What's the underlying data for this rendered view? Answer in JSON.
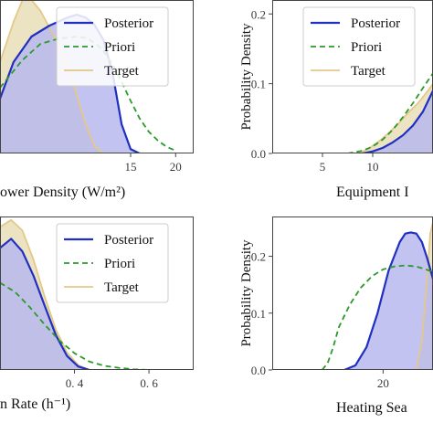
{
  "colors": {
    "posterior": "#1f2fbf",
    "posterior_fill": "#b9b9ee",
    "priori": "#2a9a2a",
    "target": "#e2c98a",
    "target_fill": "#e6d9ae",
    "axis": "#444444",
    "grid_bg": "#ffffff"
  },
  "chart_data": [
    {
      "type": "area",
      "panel": "top-left",
      "xlabel": "ower Density (W/m²)",
      "ylabel": "",
      "xlim": [
        0.5,
        22
      ],
      "ylim": [
        0,
        0.21
      ],
      "xticks": [
        15,
        20
      ],
      "xtick_labels": [
        "15",
        "20"
      ],
      "legend": {
        "placement": "top-right",
        "entries": [
          "Posterior",
          "Priori",
          "Target"
        ]
      },
      "series": [
        {
          "name": "Posterior",
          "x": [
            0.5,
            2,
            4,
            6,
            8,
            9,
            10,
            11,
            12,
            13,
            14,
            15,
            16
          ],
          "y": [
            0.075,
            0.125,
            0.16,
            0.175,
            0.186,
            0.19,
            0.186,
            0.176,
            0.155,
            0.11,
            0.04,
            0.006,
            0.0
          ]
        },
        {
          "name": "Priori",
          "x": [
            0.5,
            3,
            5,
            7,
            9,
            10,
            11,
            12,
            13,
            14,
            15,
            16,
            17,
            18,
            19,
            20
          ],
          "y": [
            0.09,
            0.128,
            0.15,
            0.157,
            0.16,
            0.158,
            0.152,
            0.14,
            0.122,
            0.098,
            0.072,
            0.048,
            0.03,
            0.018,
            0.009,
            0.004
          ]
        },
        {
          "name": "Target",
          "x": [
            0.5,
            2,
            3,
            4,
            5,
            6,
            7,
            8,
            9,
            10,
            11,
            12
          ],
          "y": [
            0.125,
            0.18,
            0.21,
            0.21,
            0.195,
            0.172,
            0.15,
            0.12,
            0.08,
            0.04,
            0.01,
            0.0
          ]
        }
      ]
    },
    {
      "type": "area",
      "panel": "top-right",
      "xlabel": "Equipment I",
      "ylabel": "Probability Density",
      "xlim": [
        0,
        16
      ],
      "ylim": [
        0,
        0.22
      ],
      "xticks": [
        5,
        10
      ],
      "xtick_labels": [
        "5",
        "10"
      ],
      "yticks": [
        0.0,
        0.1,
        0.2
      ],
      "ytick_labels": [
        "0.0",
        "0.1",
        "0.2"
      ],
      "legend": {
        "placement": "top-right",
        "entries": [
          "Posterior",
          "Priori",
          "Target"
        ]
      },
      "series": [
        {
          "name": "Posterior",
          "x": [
            9,
            10,
            11,
            12,
            13,
            14,
            15,
            16
          ],
          "y": [
            0.0,
            0.003,
            0.008,
            0.016,
            0.026,
            0.04,
            0.06,
            0.09
          ]
        },
        {
          "name": "Priori",
          "x": [
            7.5,
            9,
            10,
            11,
            12,
            13,
            14,
            15,
            16
          ],
          "y": [
            0.0,
            0.004,
            0.01,
            0.02,
            0.034,
            0.052,
            0.072,
            0.094,
            0.115
          ]
        },
        {
          "name": "Target",
          "x": [
            8.5,
            9.5,
            10.5,
            11.5,
            12.5,
            13.5,
            14.5,
            15.5,
            16
          ],
          "y": [
            0.0,
            0.006,
            0.016,
            0.028,
            0.042,
            0.058,
            0.072,
            0.09,
            0.1
          ]
        }
      ]
    },
    {
      "type": "area",
      "panel": "bottom-left",
      "xlabel": "n Rate (h⁻¹)",
      "ylabel": "",
      "xlim": [
        0.2,
        0.72
      ],
      "ylim": [
        0,
        0.22
      ],
      "xticks": [
        0.4,
        0.6
      ],
      "xtick_labels": [
        "0. 4",
        "0. 6"
      ],
      "legend": {
        "placement": "top-right",
        "entries": [
          "Posterior",
          "Priori",
          "Target"
        ]
      },
      "series": [
        {
          "name": "Posterior",
          "x": [
            0.2,
            0.23,
            0.26,
            0.29,
            0.32,
            0.35,
            0.38,
            0.41,
            0.44
          ],
          "y": [
            0.175,
            0.188,
            0.17,
            0.135,
            0.092,
            0.05,
            0.02,
            0.005,
            0.0
          ]
        },
        {
          "name": "Priori",
          "x": [
            0.2,
            0.24,
            0.28,
            0.32,
            0.36,
            0.4,
            0.44,
            0.48,
            0.52,
            0.56,
            0.6
          ],
          "y": [
            0.125,
            0.112,
            0.09,
            0.065,
            0.042,
            0.024,
            0.012,
            0.006,
            0.003,
            0.001,
            0.0
          ]
        },
        {
          "name": "Target",
          "x": [
            0.2,
            0.23,
            0.26,
            0.29,
            0.32,
            0.35,
            0.38,
            0.41,
            0.44
          ],
          "y": [
            0.205,
            0.215,
            0.2,
            0.158,
            0.105,
            0.058,
            0.025,
            0.007,
            0.0
          ]
        }
      ]
    },
    {
      "type": "area",
      "panel": "bottom-right",
      "xlabel": "Heating Sea",
      "ylabel": "Probability Density",
      "xlim": [
        0,
        29
      ],
      "ylim": [
        0,
        0.27
      ],
      "xticks": [
        20
      ],
      "xtick_labels": [
        "20"
      ],
      "yticks": [
        0.0,
        0.1,
        0.2
      ],
      "ytick_labels": [
        "0.0",
        "0.1",
        "0.2"
      ],
      "series": [
        {
          "name": "Posterior",
          "x": [
            13,
            15,
            17,
            19,
            21,
            23,
            24,
            25,
            26,
            27,
            28,
            29
          ],
          "y": [
            0.0,
            0.008,
            0.04,
            0.1,
            0.175,
            0.225,
            0.24,
            0.242,
            0.24,
            0.225,
            0.195,
            0.16
          ]
        },
        {
          "name": "Priori",
          "x": [
            9,
            10,
            11,
            12,
            14,
            16,
            18,
            20,
            22,
            24,
            26,
            28,
            29
          ],
          "y": [
            0.0,
            0.012,
            0.04,
            0.075,
            0.115,
            0.145,
            0.165,
            0.177,
            0.182,
            0.184,
            0.182,
            0.176,
            0.172
          ]
        },
        {
          "name": "Target",
          "x": [
            26,
            27,
            28,
            28.5,
            29
          ],
          "y": [
            0.0,
            0.05,
            0.17,
            0.24,
            0.26
          ]
        }
      ]
    }
  ]
}
